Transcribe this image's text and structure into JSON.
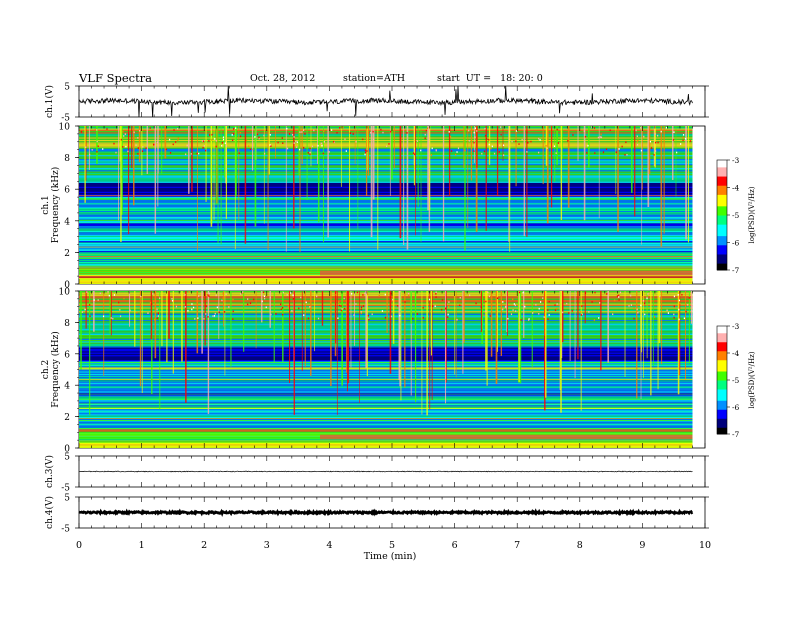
{
  "header": {
    "title": "VLF Spectra",
    "date": "Oct. 28, 2012",
    "station": "station=ATH",
    "start": "start  UT =   18: 20: 0"
  },
  "colors": {
    "colormap": [
      "#000000",
      "#00007a",
      "#0000ff",
      "#0090ff",
      "#00ffff",
      "#00ff80",
      "#40ff00",
      "#ffff00",
      "#ff8000",
      "#ff0000",
      "#ffb0b0",
      "#ffffff"
    ],
    "frame": "#000000",
    "trace": "#000000"
  },
  "chart_data": [
    {
      "type": "line",
      "name": "ch1-waveform",
      "ylabel": "ch.1(V)",
      "ylim": [
        -5,
        5
      ],
      "yticks": [
        "5",
        "-5"
      ],
      "x_range": [
        0,
        9.8
      ],
      "baseline": 0,
      "note_shape": "noisy trace with spikes"
    },
    {
      "type": "heatmap",
      "name": "ch1-spectrogram",
      "ylabel_channel": "ch.1",
      "ylabel": "Frequency (kHz)",
      "ylim": [
        0,
        10
      ],
      "yticks": [
        "0",
        "2",
        "4",
        "6",
        "8",
        "10"
      ],
      "xlim": [
        0,
        10
      ],
      "data_end_min": 9.8,
      "colorbar": {
        "label": "log(PSD)(V²/Hz)",
        "ticks": [
          "-3",
          "-4",
          "-5",
          "-6",
          "-7"
        ],
        "range": [
          -7,
          -3
        ]
      }
    },
    {
      "type": "heatmap",
      "name": "ch2-spectrogram",
      "ylabel_channel": "ch.2",
      "ylabel": "Frequency (kHz)",
      "ylim": [
        0,
        10
      ],
      "yticks": [
        "0",
        "2",
        "4",
        "6",
        "8",
        "10"
      ],
      "xlim": [
        0,
        10
      ],
      "data_end_min": 9.8,
      "colorbar": {
        "label": "log(PSD)(V²/Hz)",
        "ticks": [
          "-3",
          "-4",
          "-5",
          "-6",
          "-7"
        ],
        "range": [
          -7,
          -3
        ]
      }
    },
    {
      "type": "line",
      "name": "ch3-waveform",
      "ylabel": "ch.3(V)",
      "ylim": [
        -5,
        5
      ],
      "yticks": [
        "5",
        "-5"
      ],
      "x_range": [
        0,
        9.8
      ],
      "baseline": 0
    },
    {
      "type": "line",
      "name": "ch4-waveform",
      "ylabel": "ch.4(V)",
      "ylim": [
        -5,
        5
      ],
      "yticks": [
        "5",
        "-5"
      ],
      "x_range": [
        0,
        9.8
      ],
      "baseline": 0
    }
  ],
  "xaxis": {
    "label": "Time  (min)",
    "ticks": [
      "0",
      "1",
      "2",
      "3",
      "4",
      "5",
      "6",
      "7",
      "8",
      "9",
      "10"
    ],
    "range": [
      0,
      10
    ]
  }
}
